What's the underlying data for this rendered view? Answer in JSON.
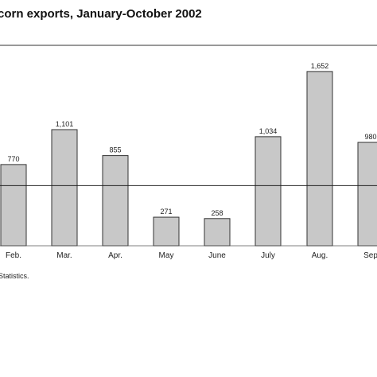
{
  "chart_data": {
    "type": "bar",
    "title": "corn exports, January-October 2002",
    "categories": [
      "Feb.",
      "Mar.",
      "Apr.",
      "May",
      "June",
      "July",
      "Aug.",
      "Sep"
    ],
    "values": [
      770,
      1101,
      855,
      271,
      258,
      1034,
      1652,
      980
    ],
    "value_labels": [
      "770",
      "1,101",
      "855",
      "271",
      "258",
      "1,034",
      "1,652",
      "980"
    ],
    "ylim": [
      0,
      1900
    ],
    "reference_value": 570,
    "source": "Statistics.",
    "bar_color": "#c8c8c8"
  }
}
